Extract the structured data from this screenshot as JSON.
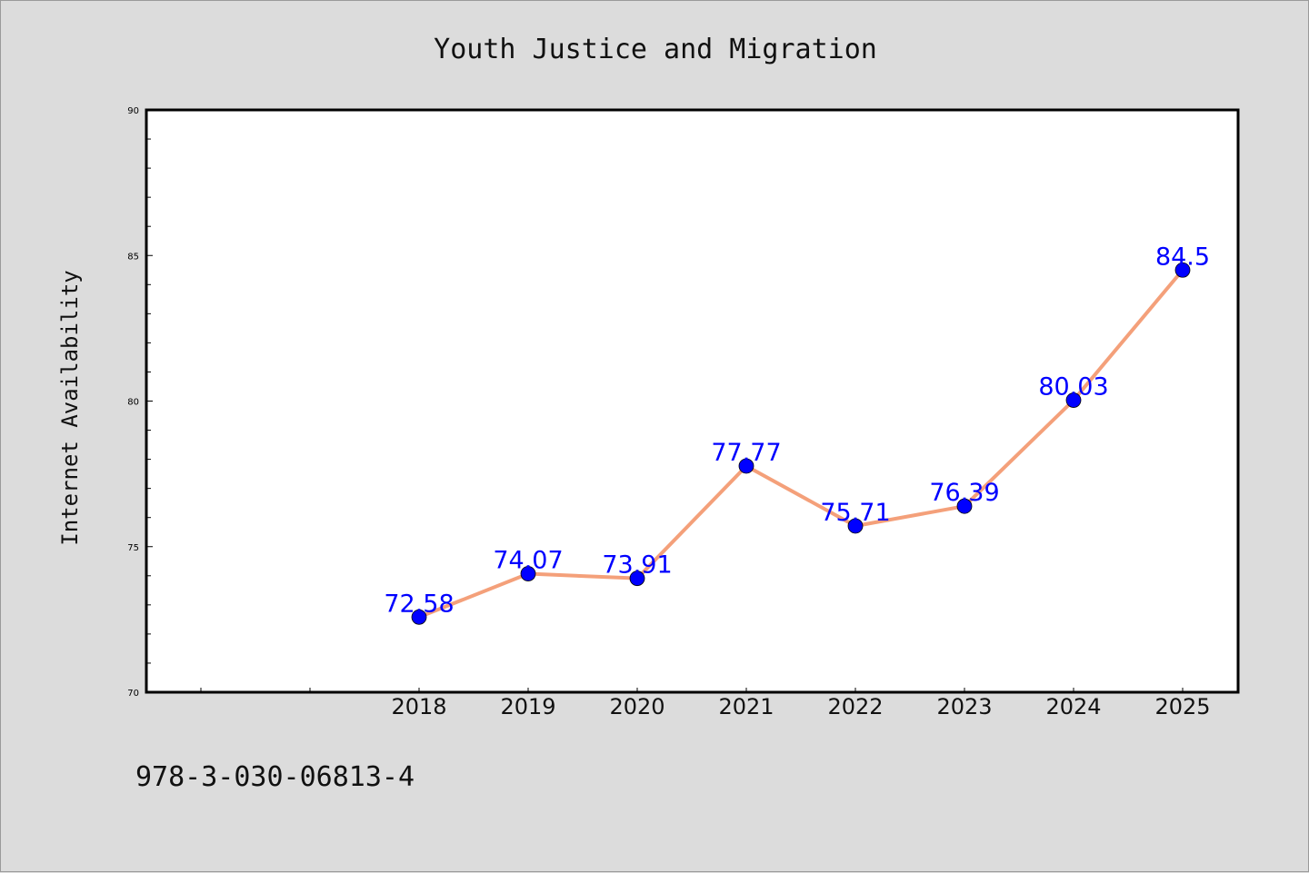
{
  "chart_data": {
    "type": "line",
    "title": "Youth Justice and Migration",
    "ylabel": "Internet Availability",
    "xlabel": "",
    "categories": [
      "2018",
      "2019",
      "2020",
      "2021",
      "2022",
      "2023",
      "2024",
      "2025"
    ],
    "values": [
      72.58,
      74.07,
      73.91,
      77.77,
      75.71,
      76.39,
      80.03,
      84.5
    ],
    "data_labels": [
      "72.58",
      "74.07",
      "73.91",
      "77.77",
      "75.71",
      "76.39",
      "80.03",
      "84.5"
    ],
    "ylim": [
      70,
      90
    ],
    "yticks": [
      "70",
      "75",
      "80",
      "85",
      "90"
    ],
    "grid": false,
    "line_color": "#f4a07a",
    "marker_color": "#0000ff",
    "label_color": "#0000ff"
  },
  "footer": {
    "isbn": "978-3-030-06813-4"
  }
}
